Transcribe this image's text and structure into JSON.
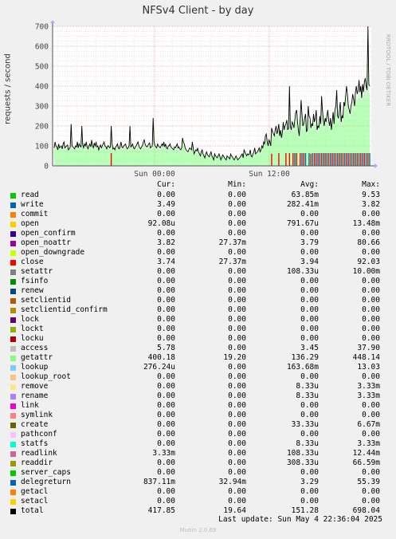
{
  "chart_data": {
    "type": "line",
    "title": "NFSv4 Client - by day",
    "ylabel": "requests / second",
    "ylim": [
      0,
      700
    ],
    "yticks": [
      "0",
      "100",
      "200",
      "300",
      "400",
      "500",
      "600",
      "700"
    ],
    "xtick_labels": [
      "Sun 00:00",
      "Sun 12:00"
    ],
    "grid": true,
    "watermark": "RRDTOOL / TOBI OETIKER",
    "total_series": [
      90,
      120,
      100,
      95,
      80,
      110,
      90,
      95,
      100,
      85,
      110,
      120,
      90,
      95,
      100,
      105,
      80,
      85,
      95,
      210,
      100,
      95,
      90,
      85,
      100,
      95,
      120,
      90,
      110,
      100,
      95,
      200,
      105,
      90,
      110,
      100,
      120,
      95,
      85,
      100,
      110,
      95,
      130,
      100,
      90,
      115,
      100,
      120,
      95,
      100,
      80,
      95,
      105,
      90,
      100,
      110,
      120,
      100,
      95,
      85,
      100,
      100,
      90,
      95,
      200,
      110,
      85,
      90,
      80,
      95,
      100,
      110,
      90,
      85,
      100,
      120,
      95,
      90,
      100,
      105,
      110,
      95,
      85,
      90,
      100,
      200,
      95,
      100,
      110,
      90,
      85,
      95,
      100,
      110,
      120,
      100,
      90,
      85,
      95,
      100,
      120,
      130,
      110,
      100,
      95,
      100,
      110,
      115,
      90,
      95,
      100,
      240,
      120,
      105,
      95,
      90,
      110,
      100,
      95,
      90,
      100,
      110,
      100,
      120,
      95,
      110,
      90,
      85,
      100,
      100,
      110,
      95,
      90,
      85,
      80,
      95,
      90,
      100,
      110,
      90,
      95,
      85,
      80,
      90,
      140,
      120,
      110,
      90,
      80,
      75,
      70,
      80,
      90,
      85,
      80,
      120,
      90,
      60,
      70,
      80,
      75,
      90,
      70,
      60,
      50,
      70,
      80,
      60,
      50,
      40,
      60,
      70,
      55,
      50,
      45,
      60,
      70,
      50,
      40,
      30,
      60,
      50,
      45,
      40,
      50,
      60,
      45,
      30,
      40,
      55,
      50,
      40,
      35,
      30,
      50,
      45,
      40,
      35,
      60,
      50,
      45,
      35,
      30,
      40,
      50,
      40,
      30,
      35,
      40,
      45,
      55,
      60,
      40,
      80,
      70,
      60,
      50,
      60,
      55,
      60,
      80,
      50,
      45,
      60,
      70,
      90,
      60,
      65,
      70,
      80,
      90,
      70,
      80,
      100,
      90,
      120,
      110,
      150,
      160,
      120,
      100,
      130,
      120,
      100,
      190,
      170,
      160,
      150,
      180,
      200,
      160,
      180,
      210,
      150,
      180,
      140,
      170,
      220,
      180,
      200,
      210,
      230,
      180,
      190,
      400,
      200,
      180,
      220,
      210,
      190,
      230,
      270,
      280,
      220,
      180,
      150,
      230,
      330,
      260,
      200,
      210,
      240,
      260,
      170,
      180,
      300,
      250,
      240,
      190,
      210,
      200,
      260,
      220,
      240,
      280,
      180,
      200,
      190,
      250,
      210,
      350,
      280,
      230,
      200,
      240,
      220,
      250,
      280,
      230,
      200,
      240,
      180,
      220,
      270,
      210,
      280,
      300,
      380,
      250,
      240,
      280,
      320,
      220,
      250,
      240,
      320,
      300,
      350,
      400,
      360,
      300,
      280,
      260,
      300,
      320,
      360,
      330,
      300,
      370,
      400,
      360,
      380,
      430,
      370,
      400,
      340,
      410,
      370,
      420,
      440,
      400,
      380,
      700,
      410,
      400
    ]
  },
  "legend": {
    "headers": [
      "Cur:",
      "Min:",
      "Avg:",
      "Max:"
    ],
    "rows": [
      {
        "name": "read",
        "color": "#00cc00",
        "cur": "0.00",
        "min": "0.00",
        "avg": "63.85m",
        "max": "9.53"
      },
      {
        "name": "write",
        "color": "#0066b3",
        "cur": "3.49",
        "min": "0.00",
        "avg": "282.41m",
        "max": "3.82"
      },
      {
        "name": "commit",
        "color": "#ff8000",
        "cur": "0.00",
        "min": "0.00",
        "avg": "0.00",
        "max": "0.00"
      },
      {
        "name": "open",
        "color": "#ffcc00",
        "cur": "92.08u",
        "min": "0.00",
        "avg": "791.67u",
        "max": "13.48m"
      },
      {
        "name": "open_confirm",
        "color": "#330099",
        "cur": "0.00",
        "min": "0.00",
        "avg": "0.00",
        "max": "0.00"
      },
      {
        "name": "open_noattr",
        "color": "#990099",
        "cur": "3.82",
        "min": "27.37m",
        "avg": "3.79",
        "max": "80.66"
      },
      {
        "name": "open_downgrade",
        "color": "#ccff00",
        "cur": "0.00",
        "min": "0.00",
        "avg": "0.00",
        "max": "0.00"
      },
      {
        "name": "close",
        "color": "#ff0000",
        "cur": "3.74",
        "min": "27.37m",
        "avg": "3.94",
        "max": "92.03"
      },
      {
        "name": "setattr",
        "color": "#808080",
        "cur": "0.00",
        "min": "0.00",
        "avg": "108.33u",
        "max": "10.00m"
      },
      {
        "name": "fsinfo",
        "color": "#008f00",
        "cur": "0.00",
        "min": "0.00",
        "avg": "0.00",
        "max": "0.00"
      },
      {
        "name": "renew",
        "color": "#00487d",
        "cur": "0.00",
        "min": "0.00",
        "avg": "0.00",
        "max": "0.00"
      },
      {
        "name": "setclientid",
        "color": "#b35a00",
        "cur": "0.00",
        "min": "0.00",
        "avg": "0.00",
        "max": "0.00"
      },
      {
        "name": "setclientid_confirm",
        "color": "#b38f00",
        "cur": "0.00",
        "min": "0.00",
        "avg": "0.00",
        "max": "0.00"
      },
      {
        "name": "lock",
        "color": "#6b006b",
        "cur": "0.00",
        "min": "0.00",
        "avg": "0.00",
        "max": "0.00"
      },
      {
        "name": "lockt",
        "color": "#8fb300",
        "cur": "0.00",
        "min": "0.00",
        "avg": "0.00",
        "max": "0.00"
      },
      {
        "name": "locku",
        "color": "#b30000",
        "cur": "0.00",
        "min": "0.00",
        "avg": "0.00",
        "max": "0.00"
      },
      {
        "name": "access",
        "color": "#bebebe",
        "cur": "5.78",
        "min": "0.00",
        "avg": "3.45",
        "max": "37.90"
      },
      {
        "name": "getattr",
        "color": "#80ff80",
        "cur": "400.18",
        "min": "19.20",
        "avg": "136.29",
        "max": "448.14"
      },
      {
        "name": "lookup",
        "color": "#80c9ff",
        "cur": "276.24u",
        "min": "0.00",
        "avg": "163.68m",
        "max": "13.03"
      },
      {
        "name": "lookup_root",
        "color": "#ffc080",
        "cur": "0.00",
        "min": "0.00",
        "avg": "0.00",
        "max": "0.00"
      },
      {
        "name": "remove",
        "color": "#ffe680",
        "cur": "0.00",
        "min": "0.00",
        "avg": "8.33u",
        "max": "3.33m"
      },
      {
        "name": "rename",
        "color": "#aa80ff",
        "cur": "0.00",
        "min": "0.00",
        "avg": "8.33u",
        "max": "3.33m"
      },
      {
        "name": "link",
        "color": "#ee00cc",
        "cur": "0.00",
        "min": "0.00",
        "avg": "0.00",
        "max": "0.00"
      },
      {
        "name": "symlink",
        "color": "#ff8080",
        "cur": "0.00",
        "min": "0.00",
        "avg": "0.00",
        "max": "0.00"
      },
      {
        "name": "create",
        "color": "#666600",
        "cur": "0.00",
        "min": "0.00",
        "avg": "33.33u",
        "max": "6.67m"
      },
      {
        "name": "pathconf",
        "color": "#ffbfff",
        "cur": "0.00",
        "min": "0.00",
        "avg": "0.00",
        "max": "0.00"
      },
      {
        "name": "statfs",
        "color": "#00ffcc",
        "cur": "0.00",
        "min": "0.00",
        "avg": "8.33u",
        "max": "3.33m"
      },
      {
        "name": "readlink",
        "color": "#cc6699",
        "cur": "3.33m",
        "min": "0.00",
        "avg": "108.33u",
        "max": "12.44m"
      },
      {
        "name": "readdir",
        "color": "#999900",
        "cur": "0.00",
        "min": "0.00",
        "avg": "308.33u",
        "max": "66.59m"
      },
      {
        "name": "server_caps",
        "color": "#00cc00",
        "cur": "0.00",
        "min": "0.00",
        "avg": "0.00",
        "max": "0.00"
      },
      {
        "name": "delegreturn",
        "color": "#0066b3",
        "cur": "837.11m",
        "min": "32.94m",
        "avg": "3.29",
        "max": "55.39"
      },
      {
        "name": "getacl",
        "color": "#ff8000",
        "cur": "0.00",
        "min": "0.00",
        "avg": "0.00",
        "max": "0.00"
      },
      {
        "name": "setacl",
        "color": "#ffcc00",
        "cur": "0.00",
        "min": "0.00",
        "avg": "0.00",
        "max": "0.00"
      },
      {
        "name": "total",
        "color": "#000000",
        "cur": "417.85",
        "min": "19.64",
        "avg": "151.28",
        "max": "698.04"
      }
    ]
  },
  "footer": {
    "last_update": "Last update: Sun May  4 22:36:04 2025",
    "munin": "Munin 2.0.69"
  }
}
